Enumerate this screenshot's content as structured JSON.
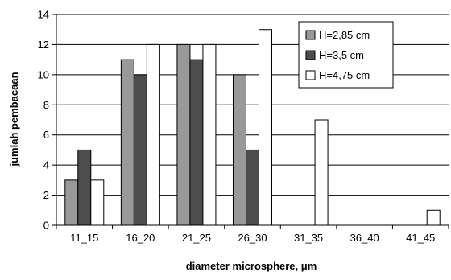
{
  "chart_data": {
    "type": "bar",
    "title": "",
    "xlabel": "diameter microsphere, μm",
    "ylabel": "jumlah pembacaan",
    "categories": [
      "11_15",
      "16_20",
      "21_25",
      "26_30",
      "31_35",
      "36_40",
      "41_45"
    ],
    "ylim": [
      0,
      14
    ],
    "yticks": [
      0,
      2,
      4,
      6,
      8,
      10,
      12,
      14
    ],
    "grid": true,
    "legend_position": "top-right",
    "series": [
      {
        "name": "H=2,85 cm",
        "color": "#999999",
        "values": [
          3,
          11,
          12,
          10,
          0,
          0,
          0
        ]
      },
      {
        "name": "H=3,5 cm",
        "color": "#4d4d4d",
        "values": [
          5,
          10,
          11,
          5,
          0,
          0,
          0
        ]
      },
      {
        "name": "H=4,75 cm",
        "color": "#ffffff",
        "values": [
          3,
          12,
          12,
          13,
          7,
          0,
          1
        ]
      }
    ]
  }
}
